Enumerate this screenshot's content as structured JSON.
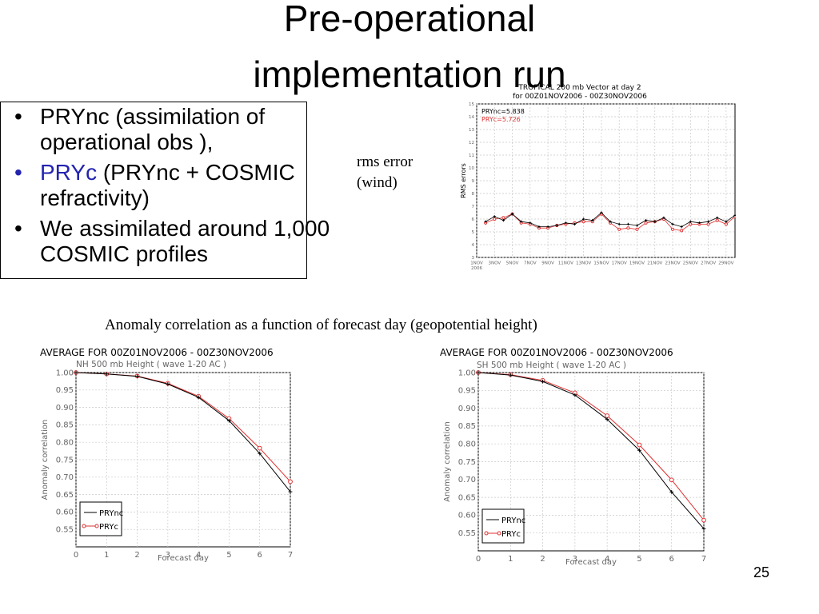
{
  "slide": {
    "title_line_1": "Pre-operational",
    "title_line_2": "implementation run",
    "page_number": "25"
  },
  "bullets": [
    {
      "marker": "•",
      "parts": [
        {
          "text": "PRYnc (assimilation of operational obs ),",
          "accent": false
        }
      ]
    },
    {
      "marker": "•",
      "parts": [
        {
          "text": "PRYc",
          "accent": true
        },
        {
          "text": " (PRYnc + COSMIC refractivity)",
          "accent": false
        }
      ]
    },
    {
      "marker": "•",
      "parts": [
        {
          "text": "We assimilated around 1,000 COSMIC profiles",
          "accent": false
        }
      ]
    }
  ],
  "labels": {
    "rms_line_1": "rms error",
    "rms_line_2": "(wind)",
    "anomaly_caption": "Anomaly correlation as a function of forecast day (geopotential height)"
  },
  "colors": {
    "accent": "#2323b0",
    "prync": "#000000",
    "pryc": "#e03030",
    "grid": "#c8c8c8"
  },
  "chart_data": [
    {
      "id": "rms",
      "type": "line",
      "title": "TROPICAL 200 mb Vector at day 2",
      "subtitle": "for 00Z01NOV2006 - 00Z30NOV2006",
      "xlabel": "",
      "ylabel": "RMS errors",
      "ylim": [
        3,
        15
      ],
      "yticks": [
        3,
        4,
        5,
        6,
        7,
        8,
        9,
        10,
        11,
        12,
        13,
        14,
        15
      ],
      "xlim": [
        1,
        30
      ],
      "xtick_values": [
        1,
        3,
        5,
        7,
        9,
        11,
        13,
        15,
        17,
        19,
        21,
        23,
        25,
        27,
        29
      ],
      "xtick_labels": [
        "1NOV 2006",
        "3NOV",
        "5NOV",
        "7NOV",
        "9NOV",
        "11NOV",
        "13NOV",
        "15NOV",
        "17NOV",
        "19NOV",
        "21NOV",
        "23NOV",
        "25NOV",
        "27NOV",
        "29NOV"
      ],
      "grid": true,
      "legend": [
        {
          "label": "PRYnc=5.838",
          "series": "PRYnc"
        },
        {
          "label": "PRYc=5.726",
          "series": "PRYc"
        }
      ],
      "series": [
        {
          "name": "PRYnc",
          "marker": "plus",
          "x": [
            2,
            3,
            4,
            5,
            6,
            7,
            8,
            9,
            10,
            11,
            12,
            13,
            14,
            15,
            16,
            17,
            18,
            19,
            20,
            21,
            22,
            23,
            24,
            25,
            26,
            27,
            28,
            29,
            30
          ],
          "values": [
            5.8,
            6.2,
            5.9,
            6.4,
            5.8,
            5.7,
            5.4,
            5.4,
            5.5,
            5.7,
            5.6,
            6.0,
            5.9,
            6.5,
            5.8,
            5.6,
            5.6,
            5.5,
            5.9,
            5.8,
            6.1,
            5.6,
            5.4,
            5.8,
            5.7,
            5.8,
            6.1,
            5.8,
            6.3
          ]
        },
        {
          "name": "PRYc",
          "marker": "circle",
          "x": [
            2,
            3,
            4,
            5,
            6,
            7,
            8,
            9,
            10,
            11,
            12,
            13,
            14,
            15,
            16,
            17,
            18,
            19,
            20,
            21,
            22,
            23,
            24,
            25,
            26,
            27,
            28,
            29,
            30
          ],
          "values": [
            5.7,
            6.0,
            6.1,
            6.4,
            5.7,
            5.6,
            5.3,
            5.3,
            5.5,
            5.6,
            5.7,
            5.8,
            5.8,
            6.4,
            5.7,
            5.2,
            5.3,
            5.2,
            5.7,
            5.8,
            6.0,
            5.2,
            5.1,
            5.6,
            5.6,
            5.6,
            5.9,
            5.6,
            6.2
          ]
        }
      ]
    },
    {
      "id": "nh",
      "type": "line",
      "title": "AVERAGE FOR 00Z01NOV2006 - 00Z30NOV2006",
      "subtitle": "NH 500 mb Height ( wave 1-20 AC )",
      "xlabel": "Forecast day",
      "ylabel": "Anomaly correlation",
      "ylim": [
        0.5,
        1.0
      ],
      "yticks": [
        1.0,
        0.95,
        0.9,
        0.85,
        0.8,
        0.75,
        0.7,
        0.65,
        0.6,
        0.55
      ],
      "ytick_labels": [
        "1.00",
        "0.95",
        "0.90",
        "0.85",
        "0.80",
        "0.75",
        "0.70",
        "0.65",
        "0.60",
        "0.55"
      ],
      "xlim": [
        0,
        7
      ],
      "xticks": [
        0,
        1,
        2,
        3,
        4,
        5,
        6,
        7
      ],
      "grid": true,
      "legend": [
        {
          "label": "PRYnc",
          "series": "PRYnc"
        },
        {
          "label": "PRYc",
          "series": "PRYc"
        }
      ],
      "series": [
        {
          "name": "PRYnc",
          "marker": "plus",
          "x": [
            0,
            1,
            2,
            3,
            4,
            5,
            6,
            7
          ],
          "values": [
            1.0,
            0.996,
            0.989,
            0.967,
            0.929,
            0.862,
            0.768,
            0.658
          ]
        },
        {
          "name": "PRYc",
          "marker": "circle",
          "x": [
            0,
            1,
            2,
            3,
            4,
            5,
            6,
            7
          ],
          "values": [
            1.0,
            0.996,
            0.99,
            0.969,
            0.932,
            0.868,
            0.783,
            0.687
          ]
        }
      ]
    },
    {
      "id": "sh",
      "type": "line",
      "title": "AVERAGE FOR 00Z01NOV2006 - 00Z30NOV2006",
      "subtitle": "SH 500 mb Height ( wave 1-20 AC )",
      "xlabel": "Forecast day",
      "ylabel": "Anomaly correlation",
      "ylim": [
        0.5,
        1.0
      ],
      "yticks": [
        1.0,
        0.95,
        0.9,
        0.85,
        0.8,
        0.75,
        0.7,
        0.65,
        0.6,
        0.55
      ],
      "ytick_labels": [
        "1.00",
        "0.95",
        "0.90",
        "0.85",
        "0.80",
        "0.75",
        "0.70",
        "0.65",
        "0.60",
        "0.55"
      ],
      "xlim": [
        0,
        7
      ],
      "xticks": [
        0,
        1,
        2,
        3,
        4,
        5,
        6,
        7
      ],
      "grid": true,
      "legend": [
        {
          "label": "PRYnc",
          "series": "PRYnc"
        },
        {
          "label": "PRYc",
          "series": "PRYc"
        }
      ],
      "series": [
        {
          "name": "PRYnc",
          "marker": "plus",
          "x": [
            0,
            1,
            2,
            3,
            4,
            5,
            6,
            7
          ],
          "values": [
            1.0,
            0.993,
            0.975,
            0.937,
            0.869,
            0.782,
            0.665,
            0.562
          ]
        },
        {
          "name": "PRYc",
          "marker": "circle",
          "x": [
            0,
            1,
            2,
            3,
            4,
            5,
            6,
            7
          ],
          "values": [
            1.0,
            0.994,
            0.978,
            0.943,
            0.879,
            0.797,
            0.699,
            0.586
          ]
        }
      ]
    }
  ]
}
